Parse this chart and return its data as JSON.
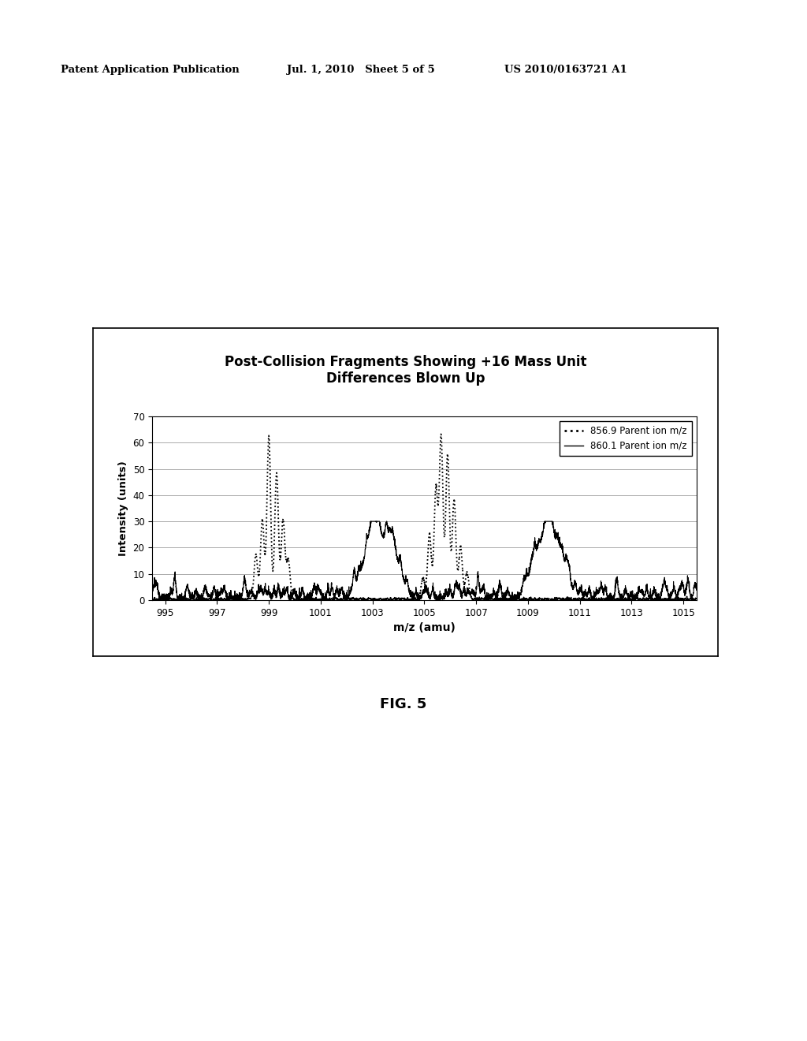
{
  "title_line1": "Post-Collision Fragments Showing +16 Mass Unit",
  "title_line2": "Differences Blown Up",
  "xlabel": "m/z (amu)",
  "ylabel": "Intensity (units)",
  "xlim": [
    994.5,
    1015.5
  ],
  "ylim": [
    0,
    70
  ],
  "yticks": [
    0,
    10,
    20,
    30,
    40,
    50,
    60,
    70
  ],
  "xticks": [
    995,
    997,
    999,
    1001,
    1003,
    1005,
    1007,
    1009,
    1011,
    1013,
    1015
  ],
  "legend1": "856.9 Parent ion m/z",
  "legend2": "860.1 Parent ion m/z",
  "header_left": "Patent Application Publication",
  "header_mid": "Jul. 1, 2010   Sheet 5 of 5",
  "header_right": "US 2010/0163721 A1",
  "fig_label": "FIG. 5",
  "background_color": "#ffffff",
  "plot_bg": "#ffffff"
}
